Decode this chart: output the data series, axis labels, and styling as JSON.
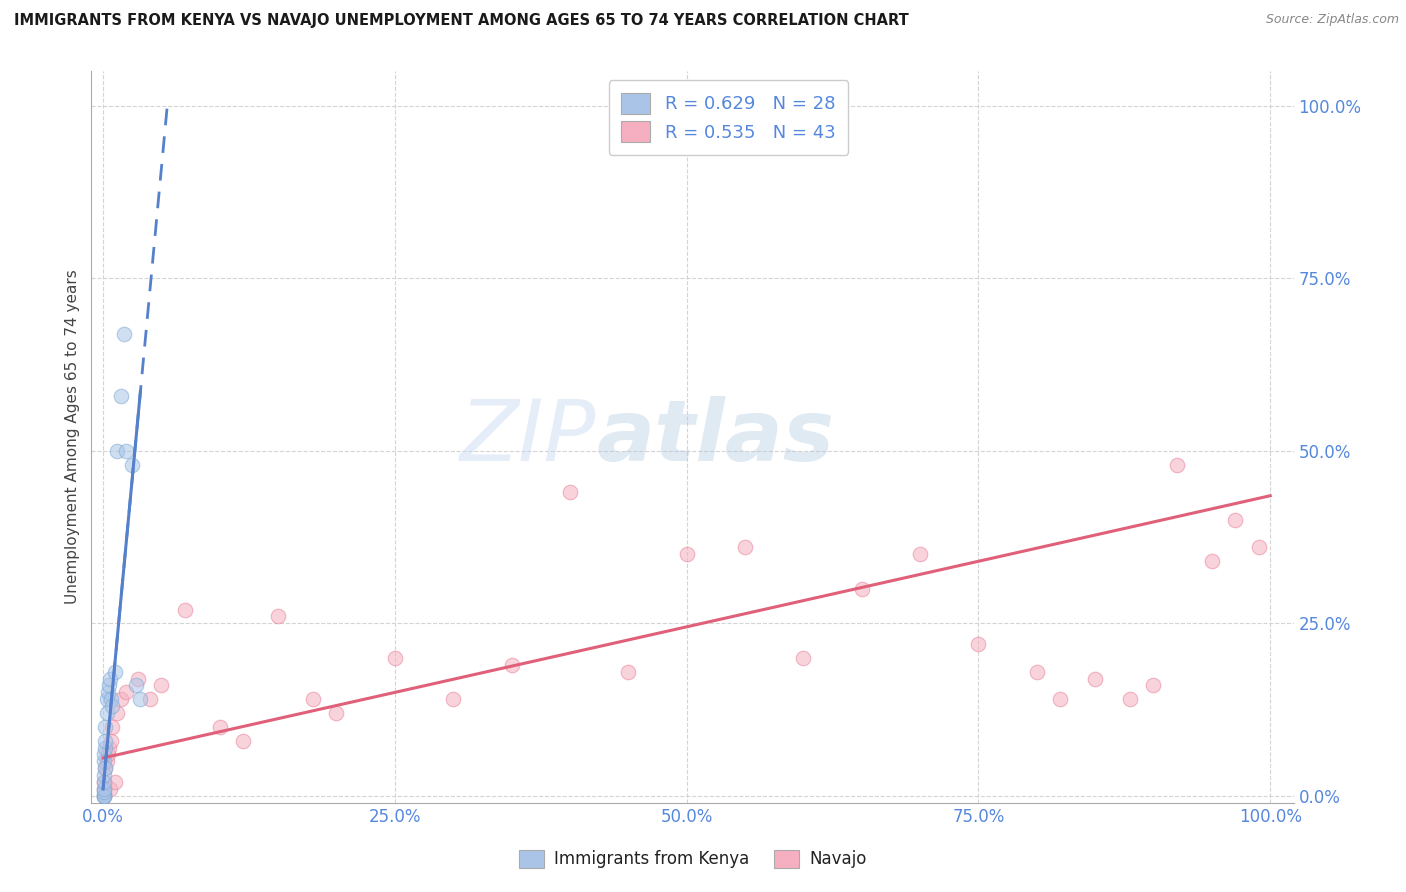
{
  "title": "IMMIGRANTS FROM KENYA VS NAVAJO UNEMPLOYMENT AMONG AGES 65 TO 74 YEARS CORRELATION CHART",
  "source": "Source: ZipAtlas.com",
  "ylabel": "Unemployment Among Ages 65 to 74 years",
  "xlim": [
    -0.01,
    1.02
  ],
  "ylim": [
    -0.01,
    1.05
  ],
  "xticks": [
    0.0,
    0.25,
    0.5,
    0.75,
    1.0
  ],
  "yticks": [
    0.0,
    0.25,
    0.5,
    0.75,
    1.0
  ],
  "xticklabels": [
    "0.0%",
    "25.0%",
    "50.0%",
    "75.0%",
    "100.0%"
  ],
  "yticklabels": [
    "0.0%",
    "25.0%",
    "50.0%",
    "75.0%",
    "100.0%"
  ],
  "kenya_color": "#aac4e8",
  "navajo_color": "#f5afc0",
  "kenya_edge_color": "#7aaad4",
  "navajo_edge_color": "#e8809a",
  "kenya_line_color": "#5580cc",
  "navajo_line_color": "#e0607a",
  "background_color": "#ffffff",
  "grid_color": "#d0d0d0",
  "title_color": "#1a1a1a",
  "axis_tick_color": "#5588dd",
  "legend_color": "#5588dd",
  "kenya_R": 0.629,
  "kenya_N": 28,
  "navajo_R": 0.535,
  "navajo_N": 43,
  "kenya_scatter_x": [
    0.0005,
    0.0008,
    0.001,
    0.001,
    0.001,
    0.001,
    0.001,
    0.001,
    0.0012,
    0.0015,
    0.002,
    0.002,
    0.002,
    0.003,
    0.003,
    0.004,
    0.005,
    0.006,
    0.007,
    0.008,
    0.01,
    0.012,
    0.015,
    0.018,
    0.02,
    0.025,
    0.028,
    0.032
  ],
  "kenya_scatter_y": [
    0.0,
    0.0,
    0.0,
    0.005,
    0.01,
    0.02,
    0.03,
    0.05,
    0.06,
    0.07,
    0.04,
    0.08,
    0.1,
    0.12,
    0.14,
    0.15,
    0.16,
    0.17,
    0.14,
    0.13,
    0.18,
    0.5,
    0.58,
    0.67,
    0.5,
    0.48,
    0.16,
    0.14
  ],
  "navajo_scatter_x": [
    0.001,
    0.001,
    0.001,
    0.002,
    0.003,
    0.004,
    0.005,
    0.006,
    0.007,
    0.008,
    0.01,
    0.012,
    0.015,
    0.02,
    0.03,
    0.04,
    0.05,
    0.07,
    0.1,
    0.12,
    0.15,
    0.18,
    0.2,
    0.25,
    0.3,
    0.35,
    0.4,
    0.45,
    0.5,
    0.55,
    0.6,
    0.65,
    0.7,
    0.75,
    0.8,
    0.82,
    0.85,
    0.88,
    0.9,
    0.92,
    0.95,
    0.97,
    0.99
  ],
  "navajo_scatter_y": [
    0.0,
    0.01,
    0.02,
    0.04,
    0.05,
    0.06,
    0.07,
    0.01,
    0.08,
    0.1,
    0.02,
    0.12,
    0.14,
    0.15,
    0.17,
    0.14,
    0.16,
    0.27,
    0.1,
    0.08,
    0.26,
    0.14,
    0.12,
    0.2,
    0.14,
    0.19,
    0.44,
    0.18,
    0.35,
    0.36,
    0.2,
    0.3,
    0.35,
    0.22,
    0.18,
    0.14,
    0.17,
    0.14,
    0.16,
    0.48,
    0.34,
    0.4,
    0.36
  ],
  "watermark_zip": "ZIP",
  "watermark_atlas": "atlas",
  "marker_size": 110,
  "alpha": 0.55,
  "kenya_reg_slope": 18.0,
  "kenya_reg_intercept": 0.01,
  "navajo_reg_slope": 0.38,
  "navajo_reg_intercept": 0.055
}
